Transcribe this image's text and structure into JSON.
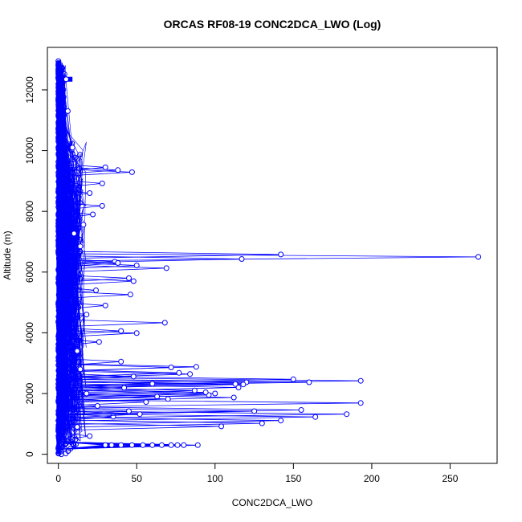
{
  "chart_data": {
    "type": "scatter",
    "title": "ORCAS RF08-19 CONC2DCA_LWO (Log)",
    "xlabel": "CONC2DCA_LWO",
    "ylabel": "Altitude (m)",
    "xlim": [
      -7,
      280
    ],
    "ylim": [
      -300,
      13400
    ],
    "x_ticks": [
      0,
      50,
      100,
      150,
      200,
      250
    ],
    "y_ticks": [
      0,
      2000,
      4000,
      6000,
      8000,
      10000,
      12000
    ],
    "grid": false,
    "legend": "none",
    "marker": "open-circle",
    "connected": true,
    "series_color": "#0000ff",
    "points": [
      {
        "x": 268,
        "y": 6500
      },
      {
        "x": 142,
        "y": 6580
      },
      {
        "x": 117,
        "y": 6430
      },
      {
        "x": 69,
        "y": 6130
      },
      {
        "x": 50,
        "y": 6220
      },
      {
        "x": 36,
        "y": 6340
      },
      {
        "x": 38,
        "y": 6300
      },
      {
        "x": 193,
        "y": 2420
      },
      {
        "x": 150,
        "y": 2470
      },
      {
        "x": 160,
        "y": 2370
      },
      {
        "x": 120,
        "y": 2370
      },
      {
        "x": 118,
        "y": 2300
      },
      {
        "x": 113,
        "y": 2310
      },
      {
        "x": 115,
        "y": 2200
      },
      {
        "x": 193,
        "y": 1690
      },
      {
        "x": 184,
        "y": 1320
      },
      {
        "x": 164,
        "y": 1230
      },
      {
        "x": 155,
        "y": 1460
      },
      {
        "x": 142,
        "y": 1110
      },
      {
        "x": 130,
        "y": 1020
      },
      {
        "x": 104,
        "y": 920
      },
      {
        "x": 125,
        "y": 1420
      },
      {
        "x": 112,
        "y": 1870
      },
      {
        "x": 100,
        "y": 2000
      },
      {
        "x": 96,
        "y": 1950
      },
      {
        "x": 94,
        "y": 2040
      },
      {
        "x": 87,
        "y": 2100
      },
      {
        "x": 89,
        "y": 300
      },
      {
        "x": 80,
        "y": 300
      },
      {
        "x": 76,
        "y": 300
      },
      {
        "x": 72,
        "y": 300
      },
      {
        "x": 66,
        "y": 300
      },
      {
        "x": 60,
        "y": 300
      },
      {
        "x": 54,
        "y": 300
      },
      {
        "x": 47,
        "y": 300
      },
      {
        "x": 40,
        "y": 300
      },
      {
        "x": 34,
        "y": 300
      },
      {
        "x": 30,
        "y": 300
      },
      {
        "x": 88,
        "y": 2880
      },
      {
        "x": 84,
        "y": 2640
      },
      {
        "x": 77,
        "y": 2680
      },
      {
        "x": 72,
        "y": 2860
      },
      {
        "x": 68,
        "y": 4330
      },
      {
        "x": 50,
        "y": 3990
      },
      {
        "x": 40,
        "y": 4060
      },
      {
        "x": 46,
        "y": 5260
      },
      {
        "x": 48,
        "y": 5700
      },
      {
        "x": 45,
        "y": 5800
      },
      {
        "x": 47,
        "y": 9290
      },
      {
        "x": 38,
        "y": 9360
      },
      {
        "x": 30,
        "y": 9450
      },
      {
        "x": 28,
        "y": 8180
      },
      {
        "x": 28,
        "y": 8920
      },
      {
        "x": 40,
        "y": 3050
      },
      {
        "x": 63,
        "y": 1900
      },
      {
        "x": 56,
        "y": 1720
      },
      {
        "x": 70,
        "y": 1820
      },
      {
        "x": 42,
        "y": 2190
      },
      {
        "x": 60,
        "y": 2320
      },
      {
        "x": 48,
        "y": 2560
      },
      {
        "x": 35,
        "y": 1240
      },
      {
        "x": 45,
        "y": 1420
      },
      {
        "x": 52,
        "y": 1320
      },
      {
        "x": 25,
        "y": 1590
      },
      {
        "x": 18,
        "y": 2000
      },
      {
        "x": 12,
        "y": 3400
      },
      {
        "x": 10,
        "y": 7270
      },
      {
        "x": 9,
        "y": 10100
      },
      {
        "x": 5,
        "y": 12350
      },
      {
        "x": 6,
        "y": 11300
      },
      {
        "x": 16,
        "y": 7560
      },
      {
        "x": 20,
        "y": 8600
      },
      {
        "x": 22,
        "y": 7900
      },
      {
        "x": 14,
        "y": 6850
      },
      {
        "x": 24,
        "y": 5400
      },
      {
        "x": 30,
        "y": 4900
      },
      {
        "x": 18,
        "y": 4600
      },
      {
        "x": 26,
        "y": 3700
      },
      {
        "x": 14,
        "y": 2800
      },
      {
        "x": 20,
        "y": 600
      },
      {
        "x": 12,
        "y": 900
      }
    ]
  }
}
